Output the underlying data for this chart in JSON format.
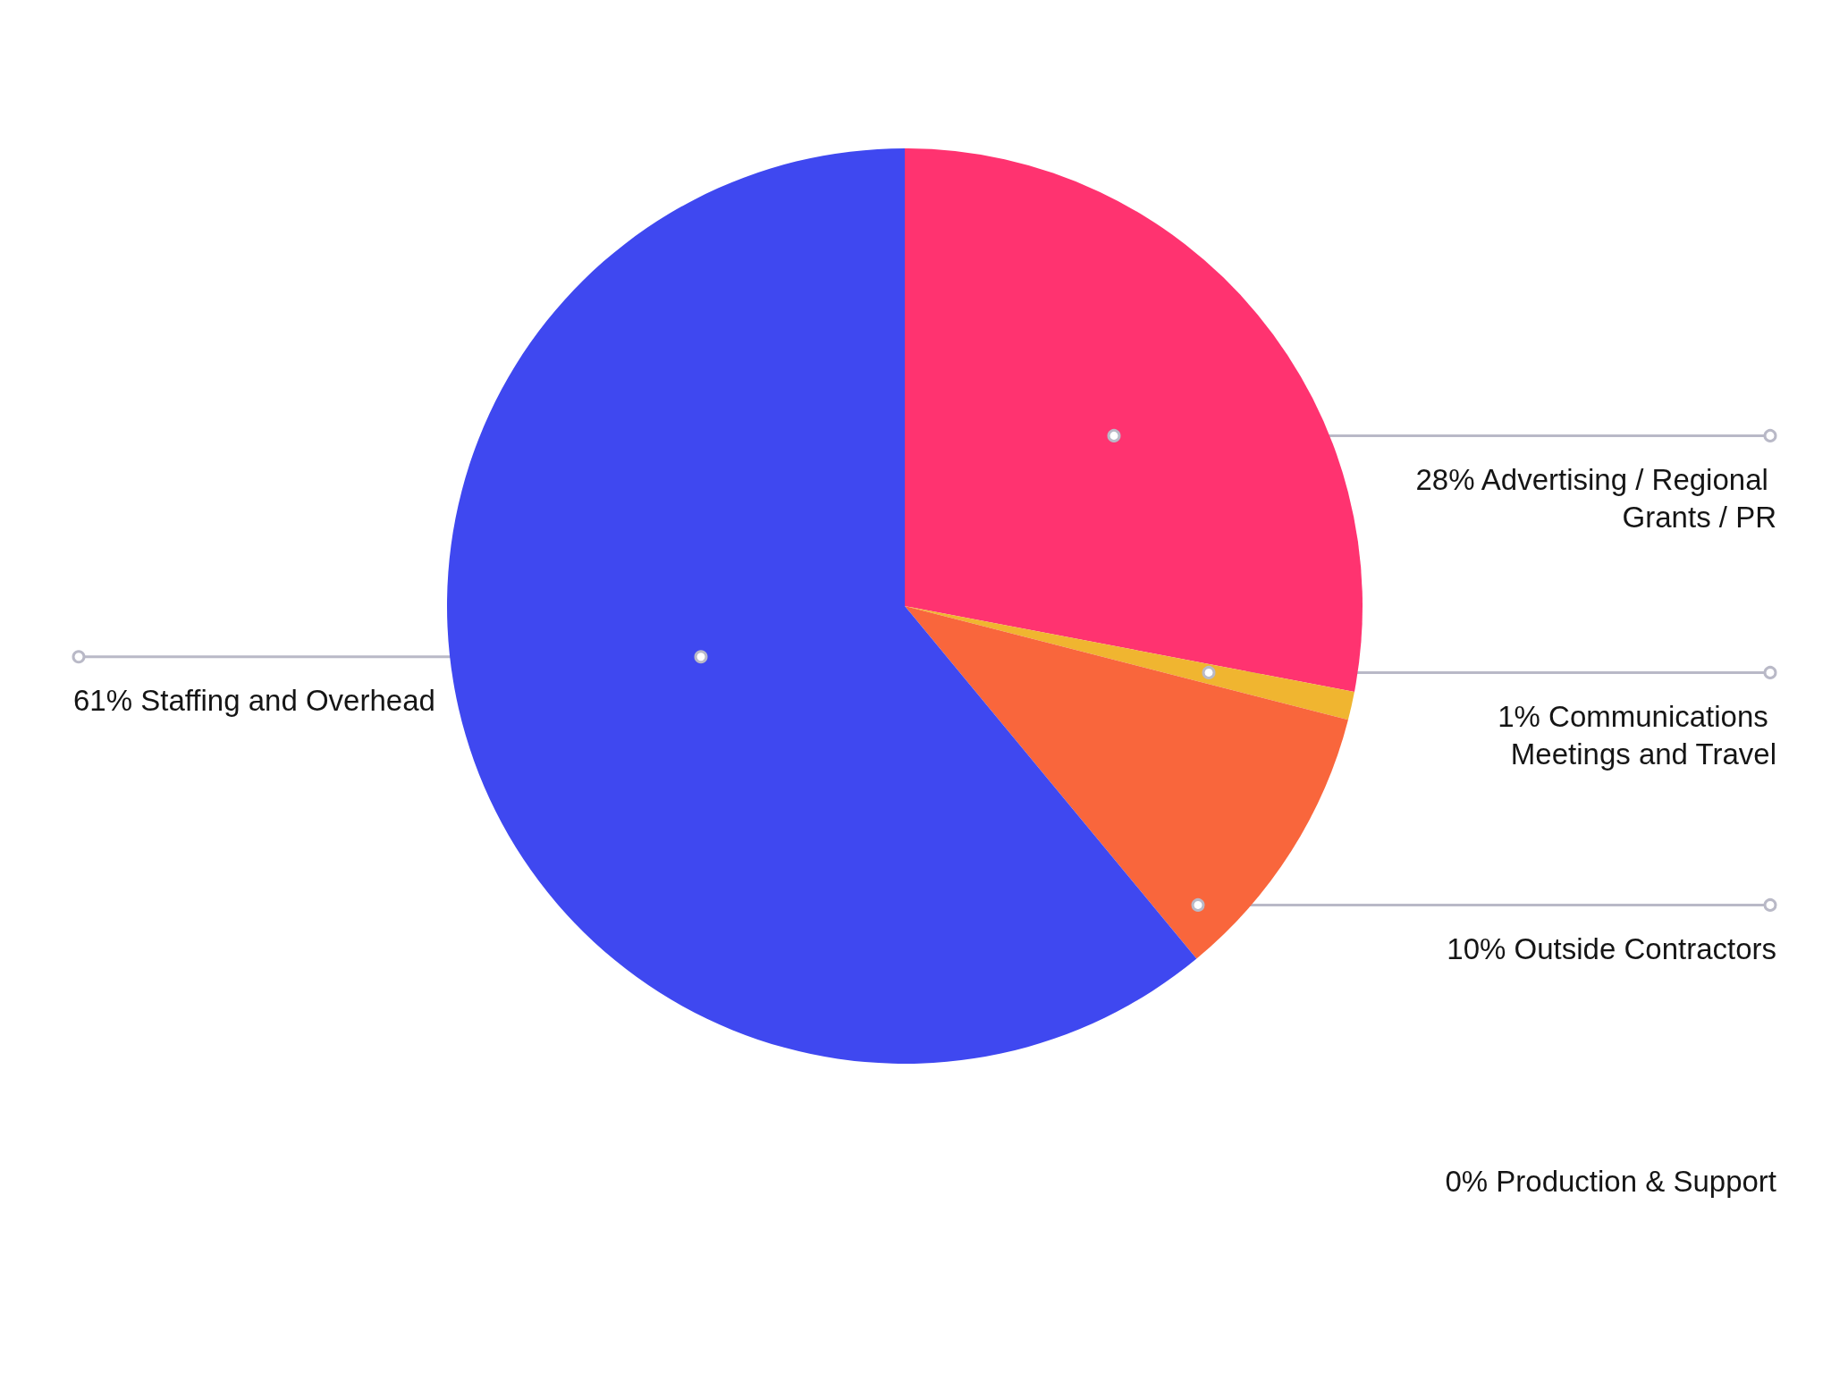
{
  "chart_data": {
    "type": "pie",
    "categories": [
      "Advertising / Regional Grants / PR",
      "Communications Meetings and Travel",
      "Outside Contractors",
      "Production & Support",
      "Staffing and Overhead"
    ],
    "values": [
      28,
      1,
      10,
      0,
      61
    ],
    "value_labels": [
      "28%",
      "1%",
      "10%",
      "0%",
      "61%"
    ],
    "colors": [
      "#ff3370",
      "#f0b530",
      "#f9663c",
      null,
      "#3f48f0"
    ]
  }
}
